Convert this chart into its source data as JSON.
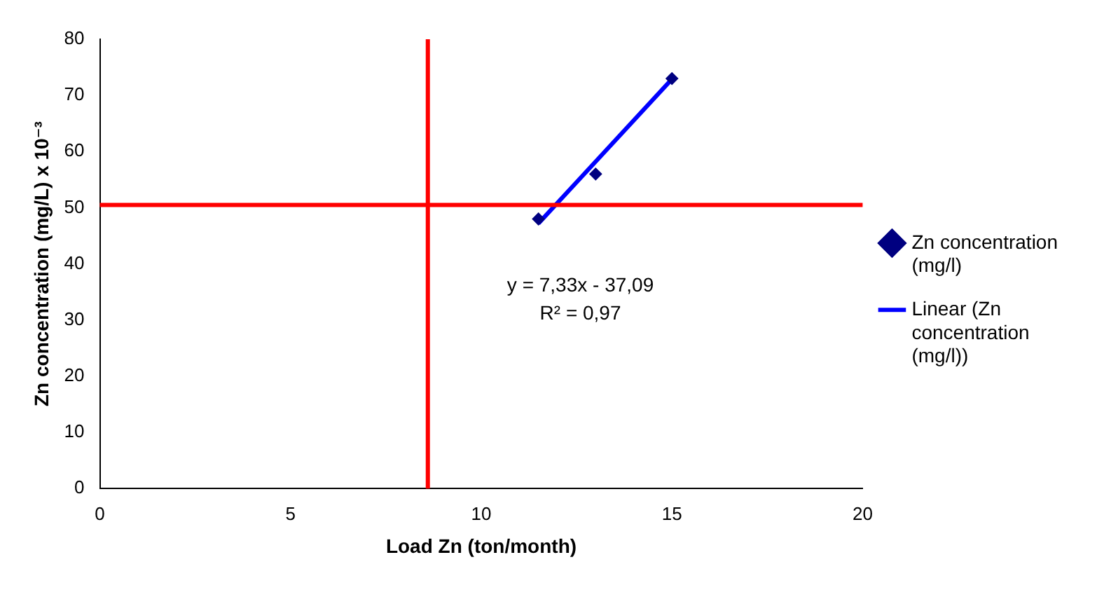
{
  "chart_data": {
    "type": "scatter",
    "xlabel": "Load Zn (ton/month)",
    "ylabel": "Zn concentration (mg/L) x 10⁻³",
    "xlim": [
      0,
      20
    ],
    "xticks": [
      0,
      5,
      10,
      15,
      20
    ],
    "ylim": [
      0,
      80
    ],
    "yticks": [
      0,
      10,
      20,
      30,
      40,
      50,
      60,
      70,
      80
    ],
    "grid": false,
    "legend": "right",
    "series": [
      {
        "name": "Zn concentration (mg/l)",
        "type": "scatter",
        "color": "#000080",
        "marker": "diamond",
        "x": [
          11.5,
          13,
          15
        ],
        "values": [
          48,
          56,
          73
        ]
      },
      {
        "name": "Linear (Zn concentration (mg/l))",
        "type": "line",
        "color": "#0000ff",
        "marker": "none",
        "line_style": "solid",
        "x": [
          11.5,
          15
        ],
        "values": [
          47.2,
          72.9
        ]
      }
    ],
    "ref_lines": [
      {
        "axis": "x",
        "value": 8.6,
        "color": "#ff0000"
      },
      {
        "axis": "y",
        "value": 50.5,
        "color": "#ff0000"
      }
    ],
    "annotations": [
      "y = 7,33x - 37,09",
      "R² = 0,97"
    ]
  }
}
